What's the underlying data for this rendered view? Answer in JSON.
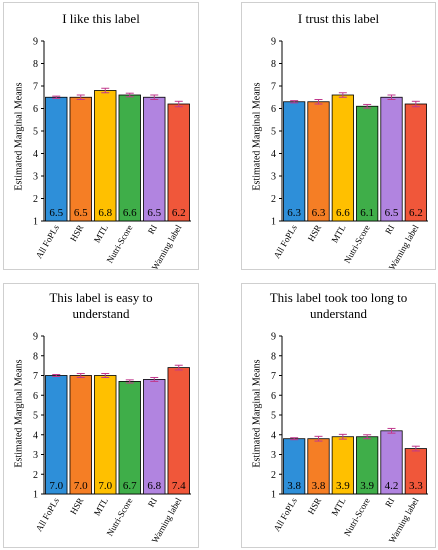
{
  "colors": {
    "series": [
      "#2E8FD9",
      "#F57E25",
      "#FFC000",
      "#3FAE49",
      "#B184E0",
      "#F0573A"
    ],
    "axis": "#000000",
    "error_bar": "#C0388C"
  },
  "chart_data": [
    {
      "type": "bar",
      "title": "I like this label",
      "categories": [
        "All FoPLs",
        "HSR",
        "MTL",
        "Nutri-Score",
        "RI",
        "Warning label"
      ],
      "values": [
        6.5,
        6.5,
        6.8,
        6.6,
        6.5,
        6.2
      ],
      "value_labels": [
        "6.5",
        "6.5",
        "6.8",
        "6.6",
        "6.5",
        "6.2"
      ],
      "error": [
        0.05,
        0.1,
        0.1,
        0.08,
        0.1,
        0.12
      ],
      "ylabel": "Estimated Marginal Means",
      "ylim": [
        1,
        9
      ],
      "yticks": [
        "1",
        "2",
        "3",
        "4",
        "5",
        "6",
        "7",
        "8",
        "9"
      ],
      "grid": false,
      "legend": "none"
    },
    {
      "type": "bar",
      "title": "I trust this label",
      "categories": [
        "All FoPLs",
        "HSR",
        "MTL",
        "Nutri-Score",
        "RI",
        "Warning label"
      ],
      "values": [
        6.3,
        6.3,
        6.6,
        6.1,
        6.5,
        6.2
      ],
      "value_labels": [
        "6.3",
        "6.3",
        "6.6",
        "6.1",
        "6.5",
        "6.2"
      ],
      "error": [
        0.05,
        0.1,
        0.1,
        0.08,
        0.1,
        0.12
      ],
      "ylabel": "Estimated Marginal Means",
      "ylim": [
        1,
        9
      ],
      "yticks": [
        "1",
        "2",
        "3",
        "4",
        "5",
        "6",
        "7",
        "8",
        "9"
      ],
      "grid": false,
      "legend": "none"
    },
    {
      "type": "bar",
      "title": "This label is easy to understand",
      "categories": [
        "All FoPLs",
        "HSR",
        "MTL",
        "Nutri-Score",
        "RI",
        "Warning label"
      ],
      "values": [
        7.0,
        7.0,
        7.0,
        6.7,
        6.8,
        7.4
      ],
      "value_labels": [
        "7.0",
        "7.0",
        "7.0",
        "6.7",
        "6.8",
        "7.4"
      ],
      "error": [
        0.05,
        0.1,
        0.1,
        0.08,
        0.1,
        0.12
      ],
      "ylabel": "Estimated Marginal Means",
      "ylim": [
        1,
        9
      ],
      "yticks": [
        "1",
        "2",
        "3",
        "4",
        "5",
        "6",
        "7",
        "8",
        "9"
      ],
      "grid": false,
      "legend": "none"
    },
    {
      "type": "bar",
      "title": "This label took too long to understand",
      "categories": [
        "All FoPLs",
        "HSR",
        "MTL",
        "Nutri-Score",
        "RI",
        "Warning label"
      ],
      "values": [
        3.8,
        3.8,
        3.9,
        3.9,
        4.2,
        3.3
      ],
      "value_labels": [
        "3.8",
        "3.8",
        "3.9",
        "3.9",
        "4.2",
        "3.3"
      ],
      "error": [
        0.05,
        0.12,
        0.12,
        0.1,
        0.12,
        0.12
      ],
      "ylabel": "Estimated Marginal Means",
      "ylim": [
        1,
        9
      ],
      "yticks": [
        "1",
        "2",
        "3",
        "4",
        "5",
        "6",
        "7",
        "8",
        "9"
      ],
      "grid": false,
      "legend": "none"
    }
  ]
}
